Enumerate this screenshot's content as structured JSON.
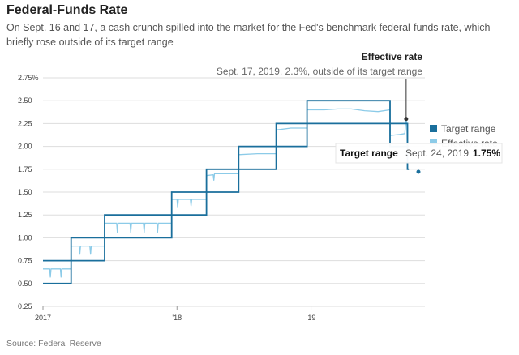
{
  "header": {
    "title": "Federal-Funds Rate",
    "subtitle": "On Sept. 16 and 17, a cash crunch spilled into the market for the Fed's benchmark federal-funds rate, which briefly rose outside of its target range"
  },
  "source": "Source: Federal Reserve",
  "colors": {
    "target": "#1a6f9c",
    "effective": "#8ccbe8",
    "grid": "#dddddd",
    "annotation": "#333333"
  },
  "annotation": {
    "title": "Effective rate",
    "text": "Sept. 17, 2019, 2.3%, outside of its target range"
  },
  "tooltip": {
    "series": "Target range",
    "date": "Sept. 24, 2019",
    "value": "1.75%"
  },
  "chart_data": {
    "type": "line",
    "xlabel": "",
    "ylabel": "",
    "xlim": [
      2017.0,
      2019.85
    ],
    "ylim": [
      0.25,
      2.75
    ],
    "x_ticks": [
      {
        "x": 2017.0,
        "label": "2017"
      },
      {
        "x": 2018.0,
        "label": "'18"
      },
      {
        "x": 2019.0,
        "label": "'19"
      }
    ],
    "y_ticks": [
      {
        "y": 0.25,
        "label": "0.25"
      },
      {
        "y": 0.5,
        "label": "0.50"
      },
      {
        "y": 0.75,
        "label": "0.75"
      },
      {
        "y": 1.0,
        "label": "1.00"
      },
      {
        "y": 1.25,
        "label": "1.25"
      },
      {
        "y": 1.5,
        "label": "1.50"
      },
      {
        "y": 1.75,
        "label": "1.75"
      },
      {
        "y": 2.0,
        "label": "2.00"
      },
      {
        "y": 2.25,
        "label": "2.25"
      },
      {
        "y": 2.5,
        "label": "2.50"
      },
      {
        "y": 2.75,
        "label": "2.75%"
      }
    ],
    "grid": true,
    "legend": "right",
    "target_range": {
      "name": "Target range",
      "steps": [
        {
          "x0": 2017.0,
          "x1": 2017.21,
          "lower": 0.5,
          "upper": 0.75
        },
        {
          "x0": 2017.21,
          "x1": 2017.46,
          "lower": 0.75,
          "upper": 1.0
        },
        {
          "x0": 2017.46,
          "x1": 2017.96,
          "lower": 1.0,
          "upper": 1.25
        },
        {
          "x0": 2017.96,
          "x1": 2018.22,
          "lower": 1.25,
          "upper": 1.5
        },
        {
          "x0": 2018.22,
          "x1": 2018.46,
          "lower": 1.5,
          "upper": 1.75
        },
        {
          "x0": 2018.46,
          "x1": 2018.74,
          "lower": 1.75,
          "upper": 2.0
        },
        {
          "x0": 2018.74,
          "x1": 2018.97,
          "lower": 2.0,
          "upper": 2.25
        },
        {
          "x0": 2018.97,
          "x1": 2019.59,
          "lower": 2.25,
          "upper": 2.5
        },
        {
          "x0": 2019.59,
          "x1": 2019.72,
          "lower": 2.0,
          "upper": 2.25
        },
        {
          "x0": 2019.72,
          "x1": 2019.73,
          "lower": 1.75,
          "upper": 2.0
        }
      ]
    },
    "effective_rate": {
      "name": "Effective rate",
      "points": [
        [
          2017.0,
          0.66
        ],
        [
          2017.05,
          0.66
        ],
        [
          2017.055,
          0.57
        ],
        [
          2017.06,
          0.66
        ],
        [
          2017.13,
          0.66
        ],
        [
          2017.135,
          0.57
        ],
        [
          2017.14,
          0.66
        ],
        [
          2017.21,
          0.66
        ],
        [
          2017.21,
          0.91
        ],
        [
          2017.27,
          0.91
        ],
        [
          2017.275,
          0.82
        ],
        [
          2017.28,
          0.91
        ],
        [
          2017.35,
          0.91
        ],
        [
          2017.355,
          0.82
        ],
        [
          2017.36,
          0.91
        ],
        [
          2017.46,
          0.91
        ],
        [
          2017.46,
          1.16
        ],
        [
          2017.55,
          1.16
        ],
        [
          2017.555,
          1.06
        ],
        [
          2017.56,
          1.16
        ],
        [
          2017.65,
          1.16
        ],
        [
          2017.655,
          1.06
        ],
        [
          2017.66,
          1.16
        ],
        [
          2017.75,
          1.16
        ],
        [
          2017.755,
          1.06
        ],
        [
          2017.76,
          1.16
        ],
        [
          2017.85,
          1.16
        ],
        [
          2017.855,
          1.06
        ],
        [
          2017.86,
          1.16
        ],
        [
          2017.96,
          1.16
        ],
        [
          2017.96,
          1.42
        ],
        [
          2018.0,
          1.42
        ],
        [
          2018.005,
          1.33
        ],
        [
          2018.01,
          1.42
        ],
        [
          2018.1,
          1.42
        ],
        [
          2018.105,
          1.35
        ],
        [
          2018.11,
          1.42
        ],
        [
          2018.22,
          1.42
        ],
        [
          2018.22,
          1.68
        ],
        [
          2018.27,
          1.69
        ],
        [
          2018.275,
          1.63
        ],
        [
          2018.28,
          1.7
        ],
        [
          2018.46,
          1.7
        ],
        [
          2018.46,
          1.91
        ],
        [
          2018.6,
          1.92
        ],
        [
          2018.74,
          1.92
        ],
        [
          2018.74,
          2.18
        ],
        [
          2018.85,
          2.2
        ],
        [
          2018.97,
          2.2
        ],
        [
          2018.97,
          2.4
        ],
        [
          2019.1,
          2.4
        ],
        [
          2019.2,
          2.41
        ],
        [
          2019.3,
          2.41
        ],
        [
          2019.4,
          2.39
        ],
        [
          2019.5,
          2.38
        ],
        [
          2019.59,
          2.4
        ],
        [
          2019.59,
          2.12
        ],
        [
          2019.66,
          2.13
        ],
        [
          2019.7,
          2.14
        ],
        [
          2019.71,
          2.3
        ],
        [
          2019.715,
          2.25
        ],
        [
          2019.72,
          1.9
        ]
      ]
    },
    "annotated_point": {
      "x": 2019.71,
      "y": 2.3
    }
  }
}
